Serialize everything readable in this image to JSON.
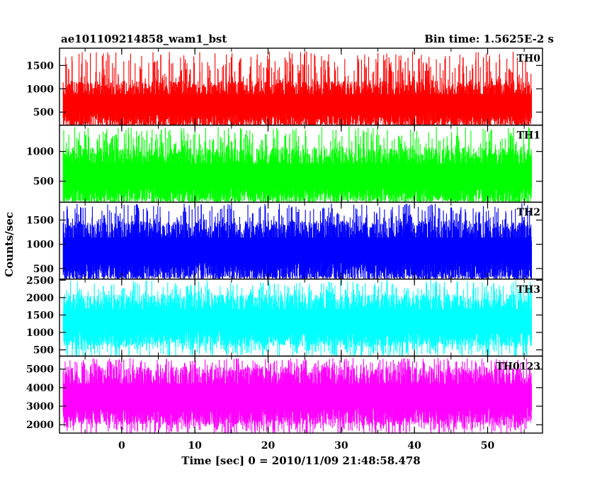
{
  "header": {
    "left_title": "ae101109214858_wam1_bst",
    "right_title": "Bin time: 1.5625E-2 s"
  },
  "chart_data": {
    "type": "line",
    "xlabel": "Time [sec] 0 = 2010/11/09 21:48:58.478",
    "ylabel": "Counts/sec",
    "xlim": [
      -8.5,
      57.5
    ],
    "x_ticks": [
      0,
      10,
      20,
      30,
      40,
      50
    ],
    "x_data_range": [
      -8,
      56
    ],
    "panels": [
      {
        "name": "TH0",
        "color": "#ff0000",
        "ylim": [
          220,
          1870
        ],
        "yticks": [
          500,
          1000,
          1500
        ],
        "baseline": 160,
        "typical_range": [
          250,
          1100
        ],
        "peak": 1800
      },
      {
        "name": "TH1",
        "color": "#00ff00",
        "ylim": [
          150,
          1440
        ],
        "yticks": [
          500,
          1000
        ],
        "baseline": 120,
        "typical_range": [
          200,
          1000
        ],
        "peak": 1420
      },
      {
        "name": "TH2",
        "color": "#0000ff",
        "ylim": [
          280,
          1870
        ],
        "yticks": [
          500,
          1000,
          1500
        ],
        "baseline": 220,
        "typical_range": [
          350,
          1400
        ],
        "peak": 1850
      },
      {
        "name": "TH3",
        "color": "#00ffff",
        "ylim": [
          320,
          2530
        ],
        "yticks": [
          500,
          1000,
          1500,
          2000,
          2500
        ],
        "baseline": 270,
        "typical_range": [
          700,
          2000
        ],
        "peak": 2500
      },
      {
        "name": "TH0123",
        "color": "#ff00ff",
        "ylim": [
          1550,
          5700
        ],
        "yticks": [
          2000,
          3000,
          4000,
          5000
        ],
        "baseline": 1500,
        "typical_range": [
          2200,
          4900
        ],
        "peak": 5600
      }
    ]
  }
}
